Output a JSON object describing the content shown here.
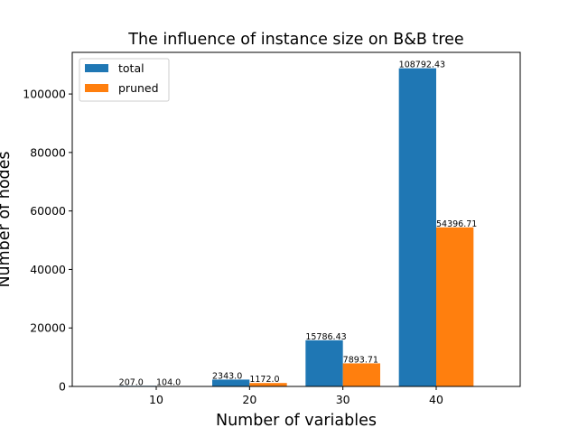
{
  "chart_data": {
    "type": "bar",
    "title": "The influence of instance size on B&B tree",
    "xlabel": "Number of variables",
    "ylabel": "Number of nodes",
    "categories": [
      "10",
      "20",
      "30",
      "40"
    ],
    "series": [
      {
        "name": "total",
        "color": "#1f77b4",
        "values": [
          207.0,
          2343.0,
          15786.43,
          108792.43
        ],
        "labels": [
          "207.0",
          "2343.0",
          "15786.43",
          "108792.43"
        ]
      },
      {
        "name": "pruned",
        "color": "#ff7f0e",
        "values": [
          104.0,
          1172.0,
          7893.71,
          54396.71
        ],
        "labels": [
          "104.0",
          "1172.0",
          "7893.71",
          "54396.71"
        ]
      }
    ],
    "ylim": [
      0,
      114232
    ],
    "yticks": [
      0,
      20000,
      40000,
      60000,
      80000,
      100000
    ],
    "grid": false,
    "legend": "top-left"
  }
}
